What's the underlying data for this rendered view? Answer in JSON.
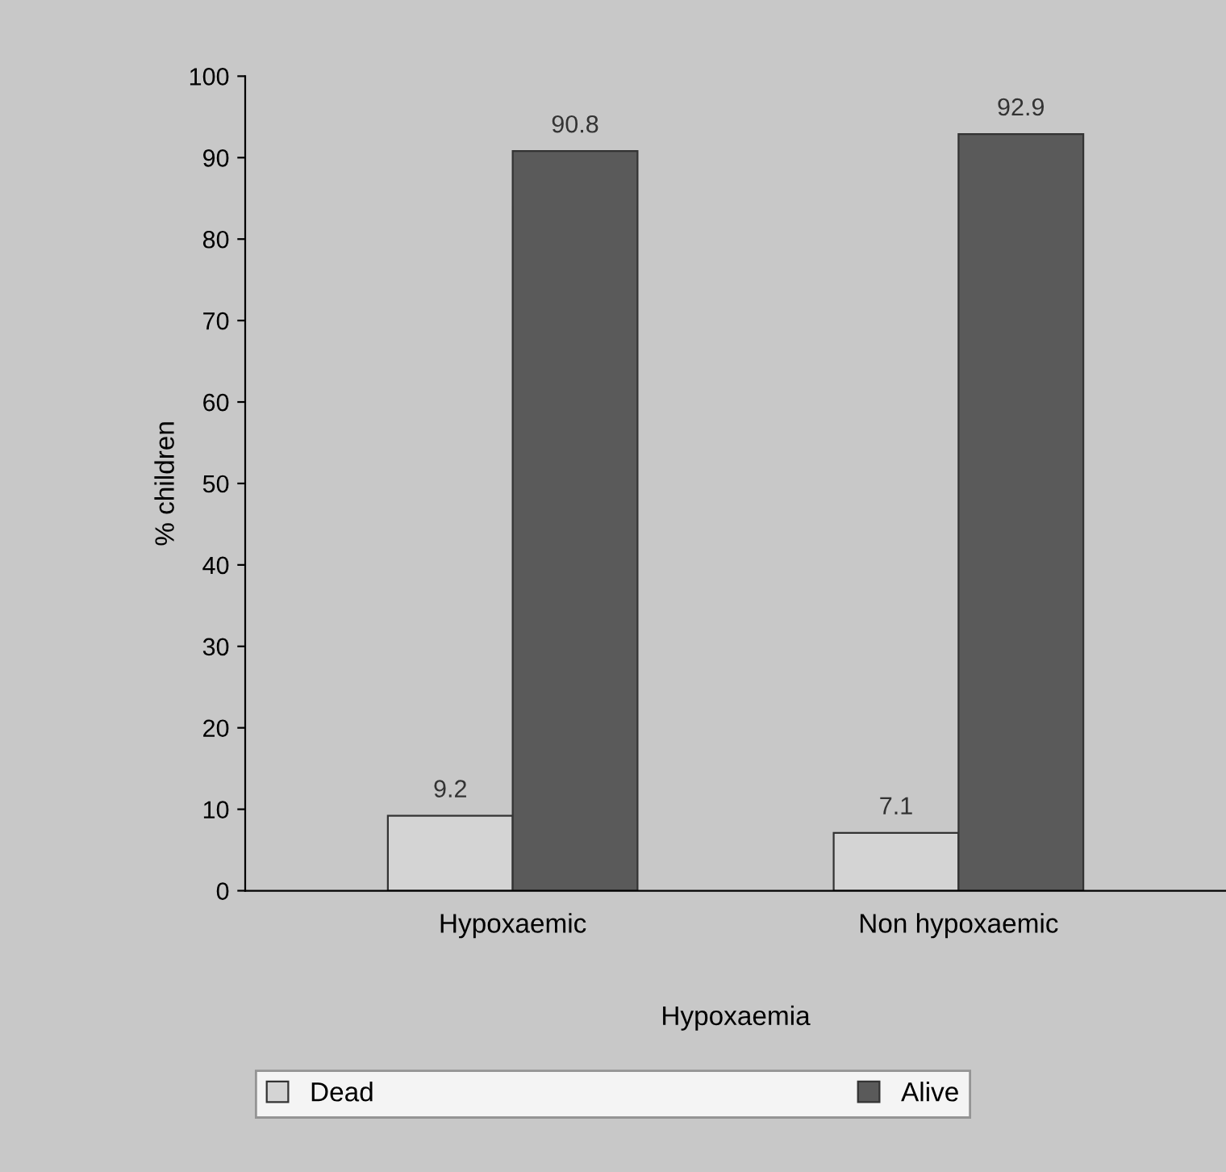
{
  "chart_data": {
    "type": "bar",
    "xlabel": "Hypoxaemia",
    "ylabel": "% children",
    "categories": [
      "Hypoxaemic",
      "Non hypoxaemic"
    ],
    "series": [
      {
        "name": "Dead",
        "color": "#d4d4d4",
        "values": [
          9.2,
          7.1
        ]
      },
      {
        "name": "Alive",
        "color": "#5a5a5a",
        "values": [
          90.8,
          92.9
        ]
      }
    ],
    "ylim": [
      0,
      100
    ],
    "yticks": [
      0,
      10,
      20,
      30,
      40,
      50,
      60,
      70,
      80,
      90,
      100
    ],
    "grid": false,
    "legend": "bottom",
    "data_labels": true
  }
}
